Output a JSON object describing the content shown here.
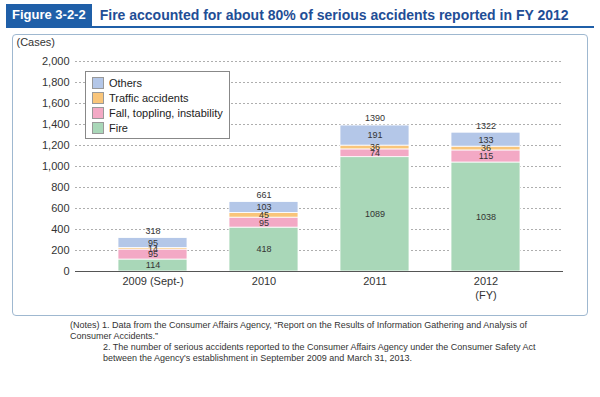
{
  "chart_data": {
    "type": "bar",
    "figure_number": "Figure 3-2-2",
    "title": "Fire accounted for about 80% of serious accidents reported in FY 2012",
    "y_label": "(Cases)",
    "x_label": "(FY)",
    "categories": [
      "2009 (Sept-)",
      "2010",
      "2011",
      "2012"
    ],
    "series": [
      {
        "name": "Fire",
        "color": "#a9d7b8",
        "values": [
          114,
          418,
          1089,
          1038
        ]
      },
      {
        "name": "Fall, toppling, instability",
        "color": "#f3a9c5",
        "values": [
          95,
          95,
          74,
          115
        ]
      },
      {
        "name": "Traffic accidents",
        "color": "#f9c57a",
        "values": [
          14,
          45,
          36,
          36
        ]
      },
      {
        "name": "Others",
        "color": "#b4c7e8",
        "values": [
          95,
          103,
          191,
          133
        ]
      }
    ],
    "totals": [
      318,
      661,
      1390,
      1322
    ],
    "ylim": [
      0,
      2000
    ],
    "yticks": [
      0,
      200,
      400,
      600,
      800,
      {
        "value": 1000,
        "label": "1,000"
      },
      {
        "value": 1200,
        "label": "1,200"
      },
      {
        "value": 1400,
        "label": "1,400"
      },
      {
        "value": 1600,
        "label": "1,600"
      },
      {
        "value": 1800,
        "label": "1,800"
      },
      {
        "value": 2000,
        "label": "2,000"
      }
    ],
    "grid": true,
    "stacked": true,
    "data_labels": true,
    "legend": "top-left",
    "notes": [
      "(Notes) 1. Data from the Consumer Affairs Agency, “Report on the Results of Information Gathering and Analysis of Consumer Accidents.”",
      "2. The number of serious accidents reported to the Consumer Affairs Agency under the Consumer Safety Act between the Agency's establishment in September 2009 and March 31, 2013."
    ]
  }
}
